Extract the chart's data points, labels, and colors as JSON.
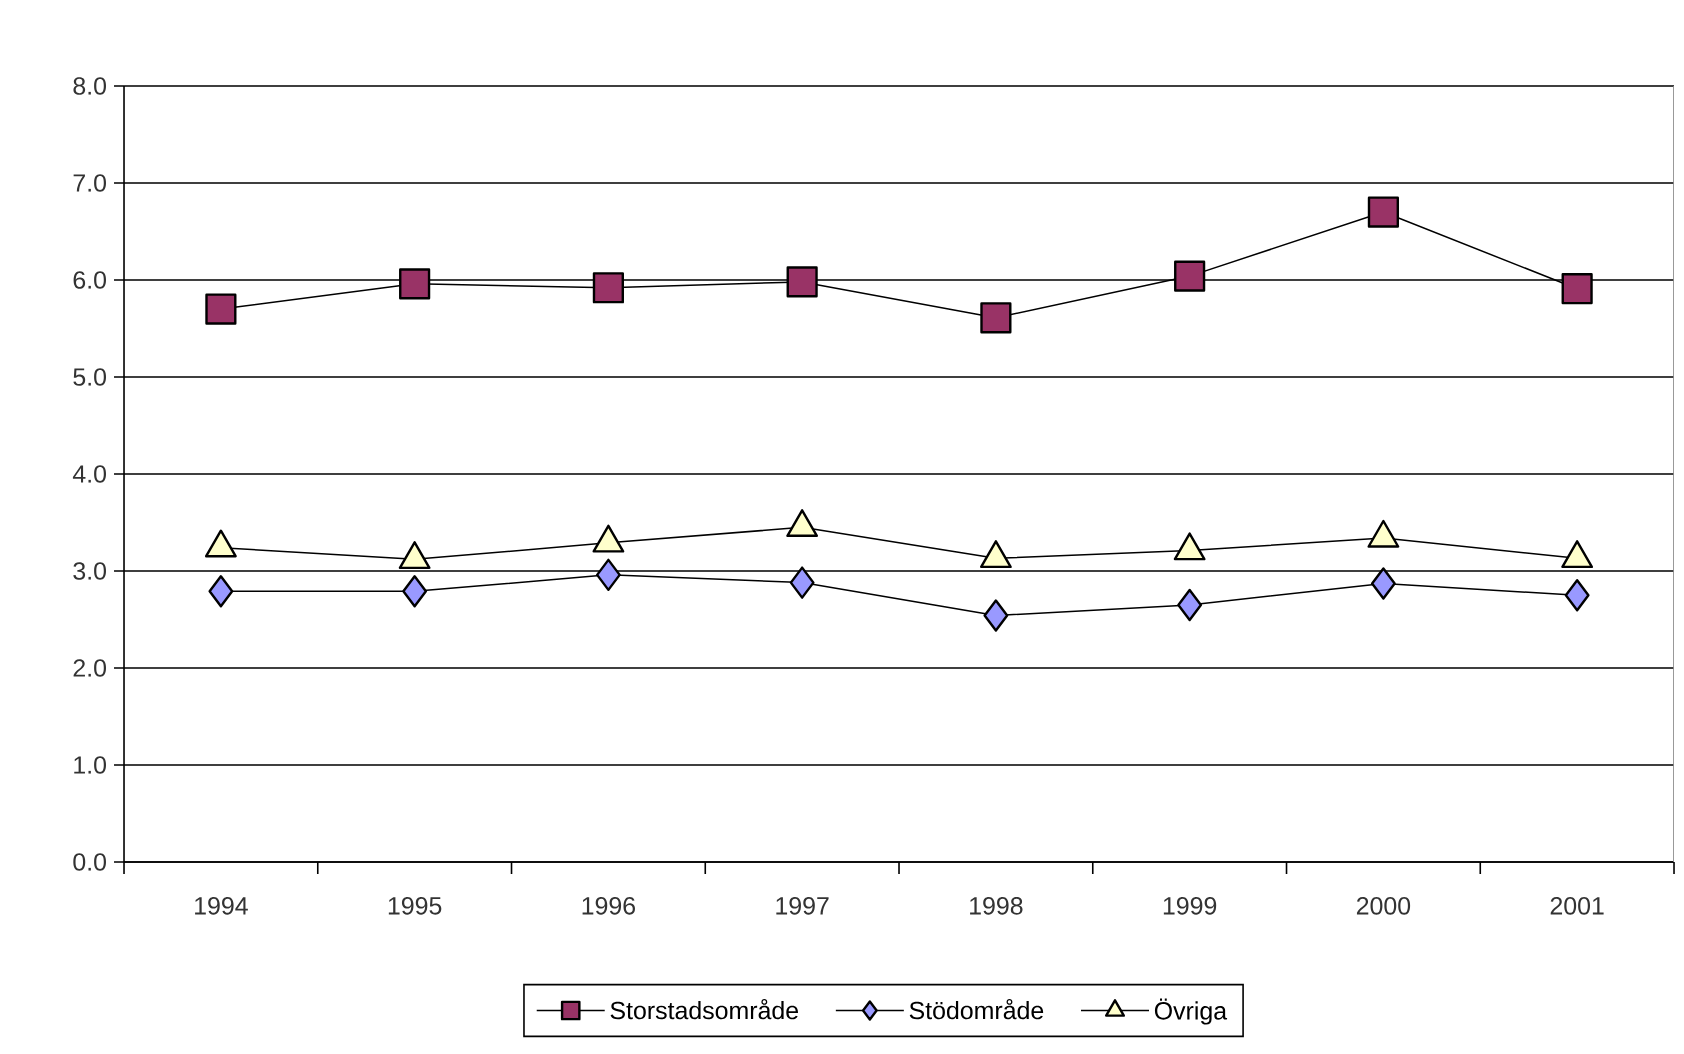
{
  "chart_data": {
    "type": "line",
    "categories": [
      "1994",
      "1995",
      "1996",
      "1997",
      "1998",
      "1999",
      "2000",
      "2001"
    ],
    "ylim": [
      0,
      8
    ],
    "yticks": [
      {
        "value": 0,
        "label": "0.0"
      },
      {
        "value": 1,
        "label": "1.0"
      },
      {
        "value": 2,
        "label": "2.0"
      },
      {
        "value": 3,
        "label": "3.0"
      },
      {
        "value": 4,
        "label": "4.0"
      },
      {
        "value": 5,
        "label": "5.0"
      },
      {
        "value": 6,
        "label": "6.0"
      },
      {
        "value": 7,
        "label": "7.0"
      },
      {
        "value": 8,
        "label": "8.0"
      }
    ],
    "grid": "y",
    "legend": "bottom",
    "line_style": "solid",
    "series": [
      {
        "name": "Storstadsområde",
        "color": "#993366",
        "marker": "square",
        "values": [
          5.7,
          5.96,
          5.92,
          5.98,
          5.61,
          6.04,
          6.7,
          5.91
        ]
      },
      {
        "name": "Stödområde",
        "color": "#9999ff",
        "marker": "diamond",
        "values": [
          2.79,
          2.79,
          2.96,
          2.88,
          2.54,
          2.65,
          2.87,
          2.75
        ]
      },
      {
        "name": "Övriga",
        "color": "#ffffcc",
        "marker": "triangle",
        "values": [
          3.24,
          3.12,
          3.29,
          3.45,
          3.13,
          3.21,
          3.34,
          3.13
        ]
      }
    ]
  }
}
